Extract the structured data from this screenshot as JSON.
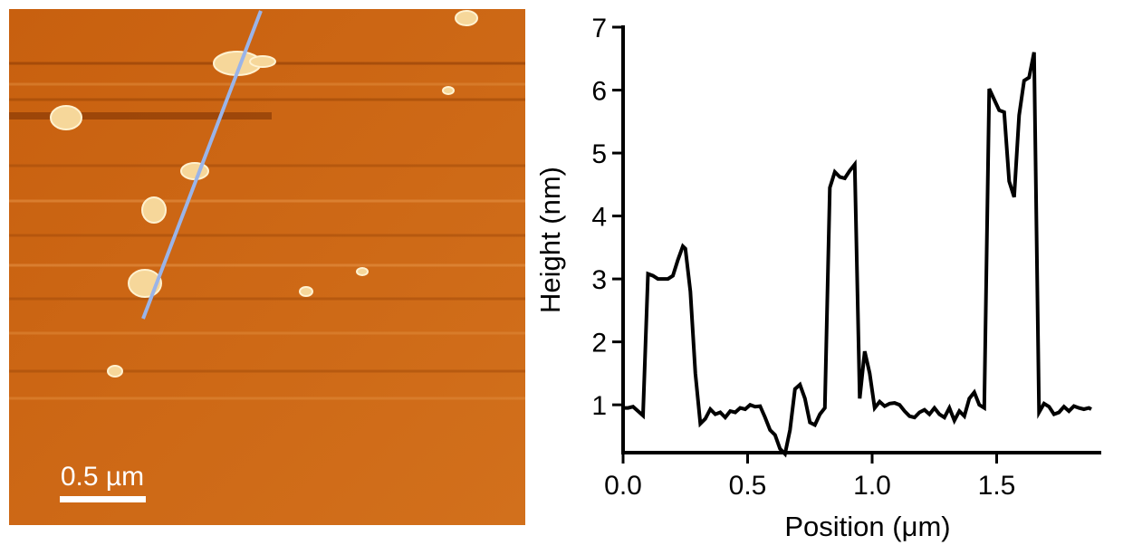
{
  "image": {
    "scale_bar_label": "0.5 µm"
  },
  "chart_data": {
    "type": "line",
    "x_label": "Position (μm)",
    "y_label": "Height (nm)",
    "xlim": [
      0,
      1.92
    ],
    "ylim": [
      0.24,
      7
    ],
    "xticks": [
      {
        "value": 0,
        "label": "0.0"
      },
      0.5,
      {
        "value": 1,
        "label": "1.0"
      },
      1.5
    ],
    "yticks": [
      1,
      2,
      3,
      4,
      5,
      6,
      7
    ],
    "grid": false,
    "series": [
      {
        "color": "#000000",
        "x": [
          0,
          0.02,
          0.04,
          0.06,
          0.08,
          0.1,
          0.12,
          0.14,
          0.16,
          0.18,
          0.2,
          0.22,
          0.24,
          0.25,
          0.27,
          0.29,
          0.31,
          0.33,
          0.35,
          0.37,
          0.39,
          0.41,
          0.43,
          0.45,
          0.47,
          0.49,
          0.51,
          0.53,
          0.55,
          0.57,
          0.59,
          0.61,
          0.63,
          0.65,
          0.67,
          0.69,
          0.71,
          0.73,
          0.75,
          0.77,
          0.79,
          0.81,
          0.83,
          0.85,
          0.87,
          0.89,
          0.91,
          0.93,
          0.95,
          0.97,
          0.99,
          1.01,
          1.03,
          1.05,
          1.07,
          1.09,
          1.11,
          1.13,
          1.15,
          1.17,
          1.19,
          1.21,
          1.23,
          1.25,
          1.27,
          1.29,
          1.31,
          1.33,
          1.35,
          1.37,
          1.39,
          1.41,
          1.43,
          1.45,
          1.47,
          1.49,
          1.51,
          1.53,
          1.55,
          1.57,
          1.59,
          1.61,
          1.63,
          1.65,
          1.67,
          1.69,
          1.71,
          1.73,
          1.75,
          1.77,
          1.79,
          1.81,
          1.83,
          1.85,
          1.87,
          1.88
        ],
        "values": [
          0.95,
          0.95,
          0.97,
          0.9,
          0.83,
          3.08,
          3.05,
          3.0,
          3.0,
          3.0,
          3.05,
          3.3,
          3.52,
          3.48,
          2.8,
          1.5,
          0.7,
          0.78,
          0.93,
          0.85,
          0.88,
          0.8,
          0.9,
          0.88,
          0.95,
          0.93,
          1.0,
          0.97,
          0.98,
          0.8,
          0.6,
          0.52,
          0.3,
          0.22,
          0.6,
          1.25,
          1.32,
          1.1,
          0.72,
          0.68,
          0.85,
          0.95,
          4.45,
          4.7,
          4.62,
          4.6,
          4.72,
          4.82,
          1.1,
          1.85,
          1.5,
          0.95,
          1.05,
          0.98,
          1.02,
          1.03,
          1.0,
          0.9,
          0.82,
          0.8,
          0.88,
          0.92,
          0.85,
          0.95,
          0.85,
          0.8,
          0.95,
          0.75,
          0.9,
          0.82,
          1.1,
          1.2,
          1.0,
          0.95,
          6.02,
          5.85,
          5.68,
          5.65,
          4.55,
          4.3,
          5.6,
          6.15,
          6.2,
          6.6,
          0.88,
          1.02,
          0.97,
          0.85,
          0.88,
          0.97,
          0.9,
          0.98,
          0.95,
          0.93,
          0.95,
          0.93
        ]
      }
    ]
  }
}
